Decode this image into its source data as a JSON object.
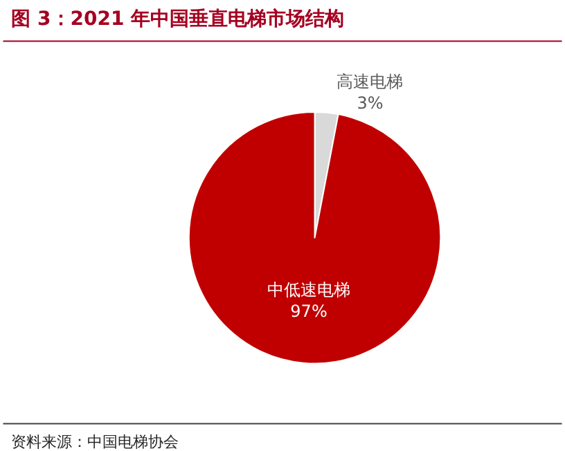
{
  "chart_data": {
    "type": "pie",
    "title": "图 3：2021 年中国垂直电梯市场结构",
    "categories": [
      "高速电梯",
      "中低速电梯"
    ],
    "values": [
      3,
      97
    ],
    "value_labels": [
      "3%",
      "97%"
    ],
    "colors": [
      "#d9d9d9",
      "#c00000"
    ],
    "legend": false,
    "annotations": [
      "资料来源：中国电梯协会"
    ]
  }
}
